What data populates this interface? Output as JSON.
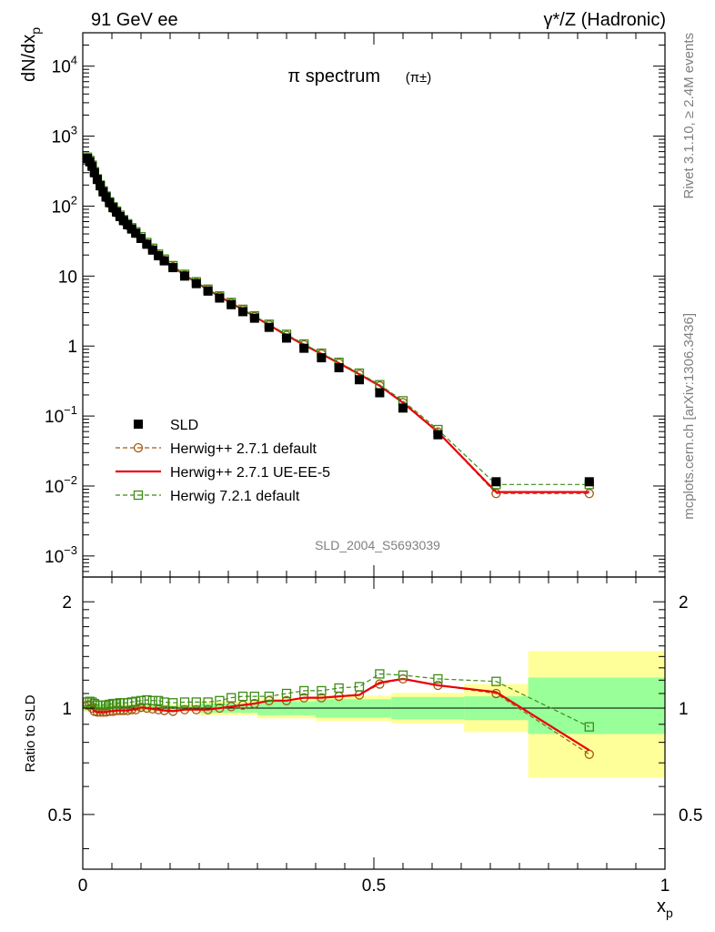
{
  "header": {
    "left": "91 GeV ee",
    "right": "γ*/Z (Hadronic)"
  },
  "side_labels": {
    "rivet": "Rivet 3.1.10, ≥ 2.4M events",
    "mcplots": "mcplots.cern.ch [arXiv:1306.3436]"
  },
  "watermark": "SLD_2004_S5693039",
  "chart_data": {
    "type": "scatter",
    "title": "π spectrum",
    "title_suffix": "(π±)",
    "ylabel": "dN/dx_p",
    "xlabel": "x_p",
    "xlim": [
      0,
      1
    ],
    "ylim": [
      0.0005,
      30000
    ],
    "y_log": true,
    "grid": false,
    "legend_position": "lower-left",
    "x_ticks": [
      "0",
      "0.5",
      "1"
    ],
    "y_ticks": [
      {
        "value": 0.001,
        "label": "10^-3"
      },
      {
        "value": 0.01,
        "label": "10^-2"
      },
      {
        "value": 0.1,
        "label": "10^-1"
      },
      {
        "value": 1,
        "label": "1"
      },
      {
        "value": 10,
        "label": "10"
      },
      {
        "value": 100,
        "label": "10^2"
      },
      {
        "value": 1000,
        "label": "10^3"
      },
      {
        "value": 10000,
        "label": "10^4"
      }
    ],
    "x": [
      0.008,
      0.012,
      0.016,
      0.02,
      0.025,
      0.03,
      0.035,
      0.04,
      0.046,
      0.052,
      0.058,
      0.064,
      0.07,
      0.077,
      0.084,
      0.091,
      0.1,
      0.11,
      0.12,
      0.13,
      0.14,
      0.155,
      0.175,
      0.195,
      0.215,
      0.235,
      0.255,
      0.275,
      0.295,
      0.32,
      0.35,
      0.38,
      0.41,
      0.44,
      0.475,
      0.51,
      0.55,
      0.61,
      0.71,
      0.87
    ],
    "series": [
      {
        "name": "SLD",
        "values": [
          480,
          430,
          370,
          300,
          240,
          195,
          160,
          135,
          112,
          95,
          82,
          71,
          62,
          54,
          47,
          41,
          34.5,
          28.5,
          23.5,
          19.5,
          16.5,
          13.2,
          10.0,
          7.8,
          6.1,
          4.85,
          3.9,
          3.1,
          2.5,
          1.85,
          1.3,
          0.93,
          0.68,
          0.49,
          0.33,
          0.215,
          0.13,
          0.054,
          0.0115,
          0.0115
        ],
        "marker": "filled-square",
        "color": "#000000"
      },
      {
        "name": "Herwig++ 2.7.1 default",
        "values": [
          490,
          440,
          370,
          295,
          235,
          190,
          156,
          131,
          109,
          92,
          80,
          70,
          61,
          53,
          47,
          41,
          34.8,
          28.9,
          24.0,
          19.9,
          16.8,
          13.6,
          10.3,
          8.1,
          6.4,
          5.1,
          4.1,
          3.3,
          2.65,
          2.0,
          1.42,
          1.04,
          0.77,
          0.57,
          0.395,
          0.27,
          0.155,
          0.059,
          0.0078,
          0.0078
        ],
        "marker": "open-circle",
        "color": "#a05a14",
        "style": "dashed"
      },
      {
        "name": "Herwig++ 2.7.1 UE-EE-5",
        "values": [
          490,
          440,
          370,
          295,
          235,
          190,
          156,
          131,
          109,
          92,
          80,
          70,
          61,
          53,
          47,
          41,
          34.8,
          28.9,
          24.0,
          19.9,
          16.8,
          13.6,
          10.3,
          8.1,
          6.4,
          5.1,
          4.1,
          3.3,
          2.65,
          2.0,
          1.42,
          1.04,
          0.77,
          0.57,
          0.395,
          0.27,
          0.155,
          0.059,
          0.0082,
          0.0082
        ],
        "marker": "none",
        "color": "#e8000b",
        "style": "solid"
      },
      {
        "name": "Herwig 7.2.1 default",
        "values": [
          500,
          450,
          385,
          310,
          245,
          200,
          165,
          139,
          115,
          98,
          85,
          74,
          64,
          56,
          49,
          43,
          36.5,
          30.2,
          25.0,
          20.6,
          17.5,
          14.1,
          10.6,
          8.3,
          6.5,
          5.2,
          4.2,
          3.35,
          2.7,
          2.05,
          1.47,
          1.07,
          0.79,
          0.585,
          0.41,
          0.28,
          0.165,
          0.064,
          0.0105,
          0.0105
        ],
        "marker": "open-square",
        "color": "#3c8c14",
        "style": "dashed"
      }
    ],
    "ratio": {
      "ylabel": "Ratio to SLD",
      "ylim": [
        0.35,
        2.35
      ],
      "y_log": true,
      "y_ticks": [
        "0.5",
        "1",
        "2"
      ],
      "bands": [
        {
          "x0": 0.0,
          "x1": 0.1,
          "inner": [
            0.985,
            1.015
          ],
          "outer": [
            0.975,
            1.025
          ]
        },
        {
          "x0": 0.1,
          "x1": 0.2,
          "inner": [
            0.985,
            1.015
          ],
          "outer": [
            0.975,
            1.025
          ]
        },
        {
          "x0": 0.2,
          "x1": 0.3,
          "inner": [
            0.97,
            1.03
          ],
          "outer": [
            0.955,
            1.045
          ]
        },
        {
          "x0": 0.3,
          "x1": 0.4,
          "inner": [
            0.955,
            1.045
          ],
          "outer": [
            0.935,
            1.065
          ]
        },
        {
          "x0": 0.4,
          "x1": 0.53,
          "inner": [
            0.94,
            1.06
          ],
          "outer": [
            0.92,
            1.085
          ]
        },
        {
          "x0": 0.53,
          "x1": 0.655,
          "inner": [
            0.93,
            1.075
          ],
          "outer": [
            0.905,
            1.105
          ]
        },
        {
          "x0": 0.655,
          "x1": 0.765,
          "inner": [
            0.925,
            1.08
          ],
          "outer": [
            0.855,
            1.17
          ]
        },
        {
          "x0": 0.765,
          "x1": 1.0,
          "inner": [
            0.845,
            1.22
          ],
          "outer": [
            0.635,
            1.45
          ]
        }
      ],
      "x": [
        0.008,
        0.012,
        0.016,
        0.02,
        0.025,
        0.03,
        0.035,
        0.04,
        0.046,
        0.052,
        0.058,
        0.064,
        0.07,
        0.077,
        0.084,
        0.091,
        0.1,
        0.11,
        0.12,
        0.13,
        0.14,
        0.155,
        0.175,
        0.195,
        0.215,
        0.235,
        0.255,
        0.275,
        0.295,
        0.32,
        0.35,
        0.38,
        0.41,
        0.44,
        0.475,
        0.51,
        0.55,
        0.61,
        0.71,
        0.87
      ],
      "series": [
        {
          "name": "Herwig++ 2.7.1 default",
          "values": [
            1.02,
            1.02,
            1.0,
            0.98,
            0.975,
            0.975,
            0.975,
            0.975,
            0.98,
            0.98,
            0.985,
            0.985,
            0.985,
            0.985,
            0.99,
            0.99,
            1.005,
            1.0,
            0.995,
            0.99,
            0.985,
            0.98,
            0.99,
            0.99,
            0.99,
            1.0,
            1.01,
            1.02,
            1.03,
            1.05,
            1.05,
            1.07,
            1.07,
            1.08,
            1.09,
            1.17,
            1.21,
            1.16,
            1.1,
            0.74
          ]
        },
        {
          "name": "Herwig++ 2.7.1 UE-EE-5",
          "values": [
            1.02,
            1.02,
            1.0,
            0.98,
            0.975,
            0.975,
            0.975,
            0.975,
            0.98,
            0.98,
            0.985,
            0.985,
            0.985,
            0.985,
            0.99,
            0.99,
            1.005,
            1.0,
            0.995,
            0.99,
            0.985,
            0.98,
            0.99,
            0.99,
            0.99,
            1.0,
            1.01,
            1.02,
            1.03,
            1.05,
            1.05,
            1.07,
            1.07,
            1.08,
            1.09,
            1.18,
            1.21,
            1.16,
            1.11,
            0.76
          ]
        },
        {
          "name": "Herwig 7.2.1 default",
          "values": [
            1.04,
            1.045,
            1.04,
            1.03,
            1.02,
            1.02,
            1.02,
            1.02,
            1.025,
            1.03,
            1.03,
            1.035,
            1.035,
            1.035,
            1.04,
            1.045,
            1.05,
            1.055,
            1.05,
            1.05,
            1.04,
            1.035,
            1.04,
            1.04,
            1.04,
            1.05,
            1.07,
            1.08,
            1.08,
            1.08,
            1.1,
            1.12,
            1.12,
            1.14,
            1.15,
            1.25,
            1.24,
            1.21,
            1.19,
            0.885
          ]
        }
      ]
    }
  }
}
